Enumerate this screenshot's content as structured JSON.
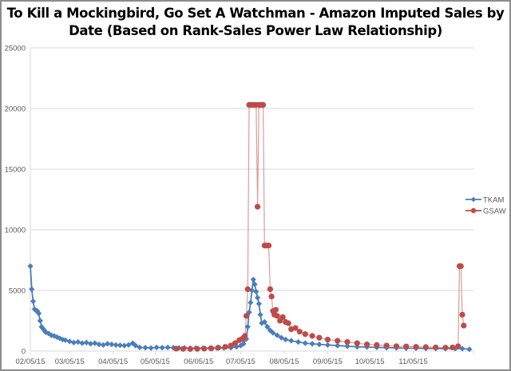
{
  "chart_data": {
    "type": "line",
    "title_line1": "To Kill a Mockingbird, Go Set A Watchman - Amazon Imputed Sales by",
    "title_line2": "Date (Based on Rank-Sales Power Law Relationship)",
    "xlabel": "",
    "ylabel": "",
    "ylim": [
      0,
      25000
    ],
    "yticks": [
      0,
      5000,
      10000,
      15000,
      20000,
      25000
    ],
    "ytick_labels": [
      "0",
      "5000",
      "10000",
      "15000",
      "20000",
      "25000"
    ],
    "xlim": [
      "2015-02-05",
      "2015-12-18"
    ],
    "xtick_dates": [
      "2015-02-05",
      "2015-03-05",
      "2015-04-05",
      "2015-05-05",
      "2015-06-05",
      "2015-07-05",
      "2015-08-05",
      "2015-09-05",
      "2015-10-05",
      "2015-11-05"
    ],
    "xtick_labels": [
      "02/05/15",
      "03/05/15",
      "04/05/15",
      "05/05/15",
      "06/05/15",
      "07/05/15",
      "08/05/15",
      "09/05/15",
      "10/05/15",
      "11/05/15"
    ],
    "grid": "horizontal",
    "legend_position": "right",
    "series": [
      {
        "name": "TKAM",
        "color": "#4a7ebb",
        "marker": "diamond",
        "points": [
          [
            "2015-02-05",
            7000
          ],
          [
            "2015-02-06",
            5100
          ],
          [
            "2015-02-07",
            4100
          ],
          [
            "2015-02-08",
            3450
          ],
          [
            "2015-02-09",
            3350
          ],
          [
            "2015-02-10",
            3300
          ],
          [
            "2015-02-11",
            3100
          ],
          [
            "2015-02-12",
            2500
          ],
          [
            "2015-02-13",
            2000
          ],
          [
            "2015-02-14",
            1850
          ],
          [
            "2015-02-15",
            1700
          ],
          [
            "2015-02-16",
            1550
          ],
          [
            "2015-02-18",
            1450
          ],
          [
            "2015-02-20",
            1300
          ],
          [
            "2015-02-22",
            1250
          ],
          [
            "2015-02-24",
            1150
          ],
          [
            "2015-02-26",
            1050
          ],
          [
            "2015-02-28",
            950
          ],
          [
            "2015-03-02",
            900
          ],
          [
            "2015-03-05",
            800
          ],
          [
            "2015-03-08",
            700
          ],
          [
            "2015-03-11",
            750
          ],
          [
            "2015-03-14",
            650
          ],
          [
            "2015-03-17",
            700
          ],
          [
            "2015-03-20",
            600
          ],
          [
            "2015-03-23",
            650
          ],
          [
            "2015-03-26",
            550
          ],
          [
            "2015-03-29",
            500
          ],
          [
            "2015-04-01",
            600
          ],
          [
            "2015-04-04",
            550
          ],
          [
            "2015-04-07",
            500
          ],
          [
            "2015-04-10",
            480
          ],
          [
            "2015-04-13",
            450
          ],
          [
            "2015-04-16",
            500
          ],
          [
            "2015-04-19",
            650
          ],
          [
            "2015-04-21",
            450
          ],
          [
            "2015-04-24",
            300
          ],
          [
            "2015-04-28",
            280
          ],
          [
            "2015-05-02",
            250
          ],
          [
            "2015-05-06",
            300
          ],
          [
            "2015-05-10",
            280
          ],
          [
            "2015-05-14",
            300
          ],
          [
            "2015-05-18",
            270
          ],
          [
            "2015-05-22",
            250
          ],
          [
            "2015-05-26",
            260
          ],
          [
            "2015-05-30",
            240
          ],
          [
            "2015-06-03",
            250
          ],
          [
            "2015-06-08",
            230
          ],
          [
            "2015-06-13",
            240
          ],
          [
            "2015-06-18",
            250
          ],
          [
            "2015-06-23",
            260
          ],
          [
            "2015-06-28",
            280
          ],
          [
            "2015-07-02",
            350
          ],
          [
            "2015-07-05",
            450
          ],
          [
            "2015-07-07",
            600
          ],
          [
            "2015-07-09",
            1000
          ],
          [
            "2015-07-10",
            2000
          ],
          [
            "2015-07-11",
            3200
          ],
          [
            "2015-07-12",
            4000
          ],
          [
            "2015-07-13",
            5000
          ],
          [
            "2015-07-14",
            5900
          ],
          [
            "2015-07-15",
            5500
          ],
          [
            "2015-07-16",
            4900
          ],
          [
            "2015-07-17",
            4400
          ],
          [
            "2015-07-18",
            3900
          ],
          [
            "2015-07-19",
            3000
          ],
          [
            "2015-07-20",
            2300
          ],
          [
            "2015-07-22",
            2400
          ],
          [
            "2015-07-24",
            2000
          ],
          [
            "2015-07-26",
            1700
          ],
          [
            "2015-07-28",
            1500
          ],
          [
            "2015-07-31",
            1300
          ],
          [
            "2015-08-03",
            1100
          ],
          [
            "2015-08-06",
            950
          ],
          [
            "2015-08-10",
            850
          ],
          [
            "2015-08-15",
            750
          ],
          [
            "2015-08-20",
            650
          ],
          [
            "2015-08-25",
            600
          ],
          [
            "2015-08-30",
            550
          ],
          [
            "2015-09-05",
            500
          ],
          [
            "2015-09-12",
            450
          ],
          [
            "2015-09-19",
            400
          ],
          [
            "2015-09-26",
            350
          ],
          [
            "2015-10-03",
            330
          ],
          [
            "2015-10-10",
            300
          ],
          [
            "2015-10-17",
            280
          ],
          [
            "2015-10-24",
            260
          ],
          [
            "2015-10-31",
            240
          ],
          [
            "2015-11-07",
            230
          ],
          [
            "2015-11-14",
            220
          ],
          [
            "2015-11-21",
            210
          ],
          [
            "2015-11-28",
            200
          ],
          [
            "2015-12-05",
            200
          ],
          [
            "2015-12-10",
            200
          ],
          [
            "2015-12-15",
            150
          ]
        ]
      },
      {
        "name": "GSAW",
        "color": "#be4b48",
        "marker": "circle",
        "points": [
          [
            "2015-05-20",
            200
          ],
          [
            "2015-05-25",
            180
          ],
          [
            "2015-05-30",
            170
          ],
          [
            "2015-06-04",
            180
          ],
          [
            "2015-06-09",
            200
          ],
          [
            "2015-06-14",
            220
          ],
          [
            "2015-06-19",
            280
          ],
          [
            "2015-06-24",
            350
          ],
          [
            "2015-06-28",
            450
          ],
          [
            "2015-07-01",
            650
          ],
          [
            "2015-07-04",
            900
          ],
          [
            "2015-07-06",
            1000
          ],
          [
            "2015-07-07",
            1100
          ],
          [
            "2015-07-08",
            1250
          ],
          [
            "2015-07-09",
            2900
          ],
          [
            "2015-07-10",
            5100
          ],
          [
            "2015-07-11",
            20300
          ],
          [
            "2015-07-12",
            20300
          ],
          [
            "2015-07-13",
            20300
          ],
          [
            "2015-07-14",
            20300
          ],
          [
            "2015-07-15",
            20300
          ],
          [
            "2015-07-16",
            20300
          ],
          [
            "2015-07-17",
            11900
          ],
          [
            "2015-07-18",
            20300
          ],
          [
            "2015-07-19",
            20300
          ],
          [
            "2015-07-20",
            20300
          ],
          [
            "2015-07-21",
            20300
          ],
          [
            "2015-07-22",
            8700
          ],
          [
            "2015-07-23",
            8700
          ],
          [
            "2015-07-24",
            8700
          ],
          [
            "2015-07-25",
            8700
          ],
          [
            "2015-07-26",
            5100
          ],
          [
            "2015-07-27",
            4500
          ],
          [
            "2015-07-28",
            3300
          ],
          [
            "2015-07-29",
            3000
          ],
          [
            "2015-07-30",
            3400
          ],
          [
            "2015-07-31",
            2900
          ],
          [
            "2015-08-02",
            2500
          ],
          [
            "2015-08-04",
            2800
          ],
          [
            "2015-08-06",
            2400
          ],
          [
            "2015-08-08",
            2300
          ],
          [
            "2015-08-10",
            1800
          ],
          [
            "2015-08-13",
            1900
          ],
          [
            "2015-08-16",
            1600
          ],
          [
            "2015-08-20",
            1400
          ],
          [
            "2015-08-25",
            1250
          ],
          [
            "2015-08-30",
            1100
          ],
          [
            "2015-09-05",
            950
          ],
          [
            "2015-09-12",
            850
          ],
          [
            "2015-09-19",
            750
          ],
          [
            "2015-09-26",
            650
          ],
          [
            "2015-10-03",
            550
          ],
          [
            "2015-10-10",
            500
          ],
          [
            "2015-10-17",
            450
          ],
          [
            "2015-10-24",
            400
          ],
          [
            "2015-10-31",
            380
          ],
          [
            "2015-11-07",
            350
          ],
          [
            "2015-11-14",
            330
          ],
          [
            "2015-11-21",
            300
          ],
          [
            "2015-11-28",
            280
          ],
          [
            "2015-12-03",
            300
          ],
          [
            "2015-12-07",
            400
          ],
          [
            "2015-12-08",
            7000
          ],
          [
            "2015-12-09",
            7000
          ],
          [
            "2015-12-10",
            3000
          ],
          [
            "2015-12-11",
            2100
          ]
        ]
      }
    ]
  }
}
